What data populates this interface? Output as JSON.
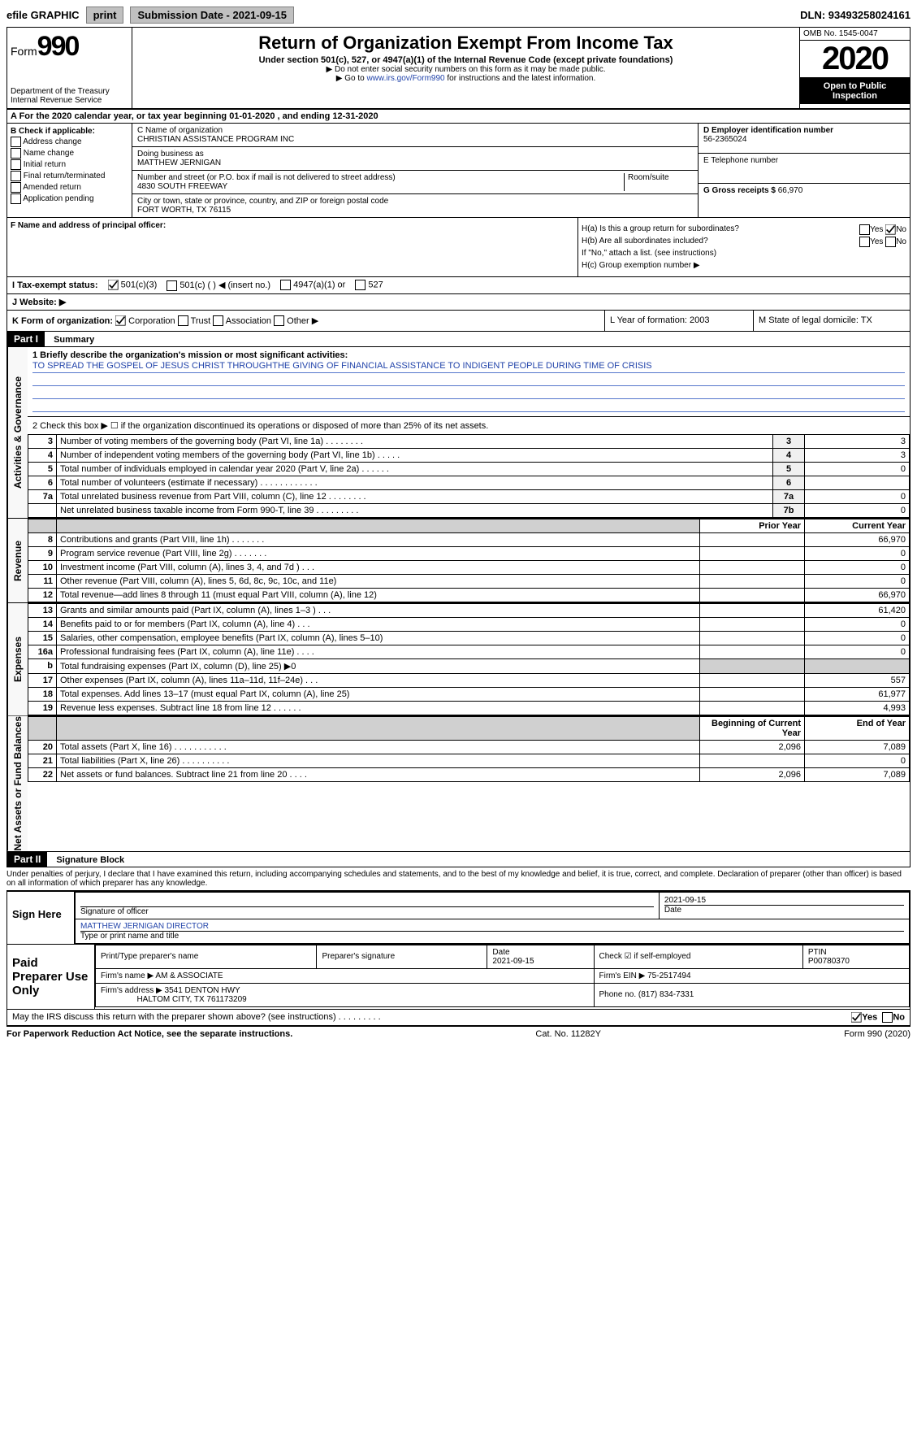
{
  "top": {
    "efile": "efile GRAPHIC",
    "print": "print",
    "sub_date_label": "Submission Date - 2021-09-15",
    "dln": "DLN: 93493258024161"
  },
  "header": {
    "form_label": "Form",
    "form_num": "990",
    "dept": "Department of the Treasury",
    "irs": "Internal Revenue Service",
    "title": "Return of Organization Exempt From Income Tax",
    "subtitle": "Under section 501(c), 527, or 4947(a)(1) of the Internal Revenue Code (except private foundations)",
    "note1": "▶ Do not enter social security numbers on this form as it may be made public.",
    "note2_pre": "▶ Go to ",
    "note2_link": "www.irs.gov/Form990",
    "note2_post": " for instructions and the latest information.",
    "omb": "OMB No. 1545-0047",
    "year": "2020",
    "open": "Open to Public Inspection"
  },
  "row_a": "A For the 2020 calendar year, or tax year beginning 01-01-2020   , and ending 12-31-2020",
  "box_b": {
    "label": "B Check if applicable:",
    "opts": [
      "Address change",
      "Name change",
      "Initial return",
      "Final return/terminated",
      "Amended return",
      "Application pending"
    ]
  },
  "box_c": {
    "name_label": "C Name of organization",
    "name": "CHRISTIAN ASSISTANCE PROGRAM INC",
    "dba_label": "Doing business as",
    "dba": "MATTHEW JERNIGAN",
    "addr_label": "Number and street (or P.O. box if mail is not delivered to street address)",
    "addr": "4830 SOUTH FREEWAY",
    "room_label": "Room/suite",
    "city_label": "City or town, state or province, country, and ZIP or foreign postal code",
    "city": "FORT WORTH, TX  76115"
  },
  "box_d": {
    "label": "D Employer identification number",
    "val": "56-2365024"
  },
  "box_e": {
    "label": "E Telephone number",
    "val": ""
  },
  "box_g": {
    "label": "G Gross receipts $",
    "val": "66,970"
  },
  "box_f": {
    "label": "F Name and address of principal officer:"
  },
  "box_h": {
    "ha": "H(a)  Is this a group return for subordinates?",
    "hb": "H(b)  Are all subordinates included?",
    "hb_note": "If \"No,\" attach a list. (see instructions)",
    "hc": "H(c)  Group exemption number ▶",
    "yes": "Yes",
    "no": "No"
  },
  "row_i": {
    "label": "I    Tax-exempt status:",
    "o1": "501(c)(3)",
    "o2": "501(c) (  ) ◀ (insert no.)",
    "o3": "4947(a)(1) or",
    "o4": "527"
  },
  "row_j": "J    Website: ▶",
  "row_k": {
    "k": "K Form of organization:",
    "corp": "Corporation",
    "trust": "Trust",
    "assoc": "Association",
    "other": "Other ▶",
    "l": "L Year of formation: 2003",
    "m": "M State of legal domicile: TX"
  },
  "part1": {
    "title": "Part I",
    "sub": "Summary",
    "tab_ag": "Activities & Governance",
    "tab_rev": "Revenue",
    "tab_exp": "Expenses",
    "tab_net": "Net Assets or Fund Balances",
    "l1": "1  Briefly describe the organization's mission or most significant activities:",
    "l1_text": "TO SPREAD THE GOSPEL OF JESUS CHRIST THROUGHTHE GIVING OF FINANCIAL ASSISTANCE TO INDIGENT PEOPLE DURING TIME OF CRISIS",
    "l2": "2  Check this box ▶ ☐  if the organization discontinued its operations or disposed of more than 25% of its net assets.",
    "lines_ag": [
      {
        "n": "3",
        "d": "Number of voting members of the governing body (Part VI, line 1a)   .   .   .   .   .   .   .   .",
        "b": "3",
        "v": "3"
      },
      {
        "n": "4",
        "d": "Number of independent voting members of the governing body (Part VI, line 1b)   .   .   .   .   .",
        "b": "4",
        "v": "3"
      },
      {
        "n": "5",
        "d": "Total number of individuals employed in calendar year 2020 (Part V, line 2a)   .   .   .   .   .   .",
        "b": "5",
        "v": "0"
      },
      {
        "n": "6",
        "d": "Total number of volunteers (estimate if necessary)   .   .   .   .   .   .   .   .   .   .   .   .",
        "b": "6",
        "v": ""
      },
      {
        "n": "7a",
        "d": "Total unrelated business revenue from Part VIII, column (C), line 12   .   .   .   .   .   .   .   .",
        "b": "7a",
        "v": "0"
      },
      {
        "n": "",
        "d": "Net unrelated business taxable income from Form 990-T, line 39   .   .   .   .   .   .   .   .   .",
        "b": "7b",
        "v": "0"
      }
    ],
    "h_prior": "Prior Year",
    "h_current": "Current Year",
    "lines_rev": [
      {
        "n": "8",
        "d": "Contributions and grants (Part VIII, line 1h)   .   .   .   .   .   .   .",
        "p": "",
        "c": "66,970"
      },
      {
        "n": "9",
        "d": "Program service revenue (Part VIII, line 2g)   .   .   .   .   .   .   .",
        "p": "",
        "c": "0"
      },
      {
        "n": "10",
        "d": "Investment income (Part VIII, column (A), lines 3, 4, and 7d )   .   .   .",
        "p": "",
        "c": "0"
      },
      {
        "n": "11",
        "d": "Other revenue (Part VIII, column (A), lines 5, 6d, 8c, 9c, 10c, and 11e)",
        "p": "",
        "c": "0"
      },
      {
        "n": "12",
        "d": "Total revenue—add lines 8 through 11 (must equal Part VIII, column (A), line 12)",
        "p": "",
        "c": "66,970"
      }
    ],
    "lines_exp": [
      {
        "n": "13",
        "d": "Grants and similar amounts paid (Part IX, column (A), lines 1–3 )   .   .   .",
        "p": "",
        "c": "61,420"
      },
      {
        "n": "14",
        "d": "Benefits paid to or for members (Part IX, column (A), line 4)   .   .   .",
        "p": "",
        "c": "0"
      },
      {
        "n": "15",
        "d": "Salaries, other compensation, employee benefits (Part IX, column (A), lines 5–10)",
        "p": "",
        "c": "0"
      },
      {
        "n": "16a",
        "d": "Professional fundraising fees (Part IX, column (A), line 11e)   .   .   .   .",
        "p": "",
        "c": "0"
      },
      {
        "n": "b",
        "d": "Total fundraising expenses (Part IX, column (D), line 25) ▶0",
        "p": "gray",
        "c": "gray"
      },
      {
        "n": "17",
        "d": "Other expenses (Part IX, column (A), lines 11a–11d, 11f–24e)   .   .   .",
        "p": "",
        "c": "557"
      },
      {
        "n": "18",
        "d": "Total expenses. Add lines 13–17 (must equal Part IX, column (A), line 25)",
        "p": "",
        "c": "61,977"
      },
      {
        "n": "19",
        "d": "Revenue less expenses. Subtract line 18 from line 12   .   .   .   .   .   .",
        "p": "",
        "c": "4,993"
      }
    ],
    "h_begin": "Beginning of Current Year",
    "h_end": "End of Year",
    "lines_net": [
      {
        "n": "20",
        "d": "Total assets (Part X, line 16)   .   .   .   .   .   .   .   .   .   .   .",
        "p": "2,096",
        "c": "7,089"
      },
      {
        "n": "21",
        "d": "Total liabilities (Part X, line 26)   .   .   .   .   .   .   .   .   .   .",
        "p": "",
        "c": "0"
      },
      {
        "n": "22",
        "d": "Net assets or fund balances. Subtract line 21 from line 20   .   .   .   .",
        "p": "2,096",
        "c": "7,089"
      }
    ]
  },
  "part2": {
    "title": "Part II",
    "sub": "Signature Block"
  },
  "penalties": "Under penalties of perjury, I declare that I have examined this return, including accompanying schedules and statements, and to the best of my knowledge and belief, it is true, correct, and complete. Declaration of preparer (other than officer) is based on all information of which preparer has any knowledge.",
  "sign": {
    "left": "Sign Here",
    "sig_officer": "Signature of officer",
    "date": "2021-09-15",
    "date_label": "Date",
    "name": "MATTHEW JERNIGAN  DIRECTOR",
    "name_label": "Type or print name and title"
  },
  "prep": {
    "left": "Paid Preparer Use Only",
    "col1": "Print/Type preparer's name",
    "col2": "Preparer's signature",
    "col3": "Date",
    "col3v": "2021-09-15",
    "col4": "Check ☑ if self-employed",
    "col5": "PTIN",
    "col5v": "P00780370",
    "firm_label": "Firm's name   ▶",
    "firm": "AM & ASSOCIATE",
    "ein_label": "Firm's EIN ▶",
    "ein": "75-2517494",
    "addr_label": "Firm's address ▶",
    "addr": "3541 DENTON HWY",
    "addr2": "HALTOM CITY, TX  761173209",
    "phone_label": "Phone no.",
    "phone": "(817) 834-7331"
  },
  "discuss": "May the IRS discuss this return with the preparer shown above? (see instructions)   .   .   .   .   .   .   .   .   .",
  "footer": {
    "left": "For Paperwork Reduction Act Notice, see the separate instructions.",
    "mid": "Cat. No. 11282Y",
    "right": "Form 990 (2020)"
  }
}
